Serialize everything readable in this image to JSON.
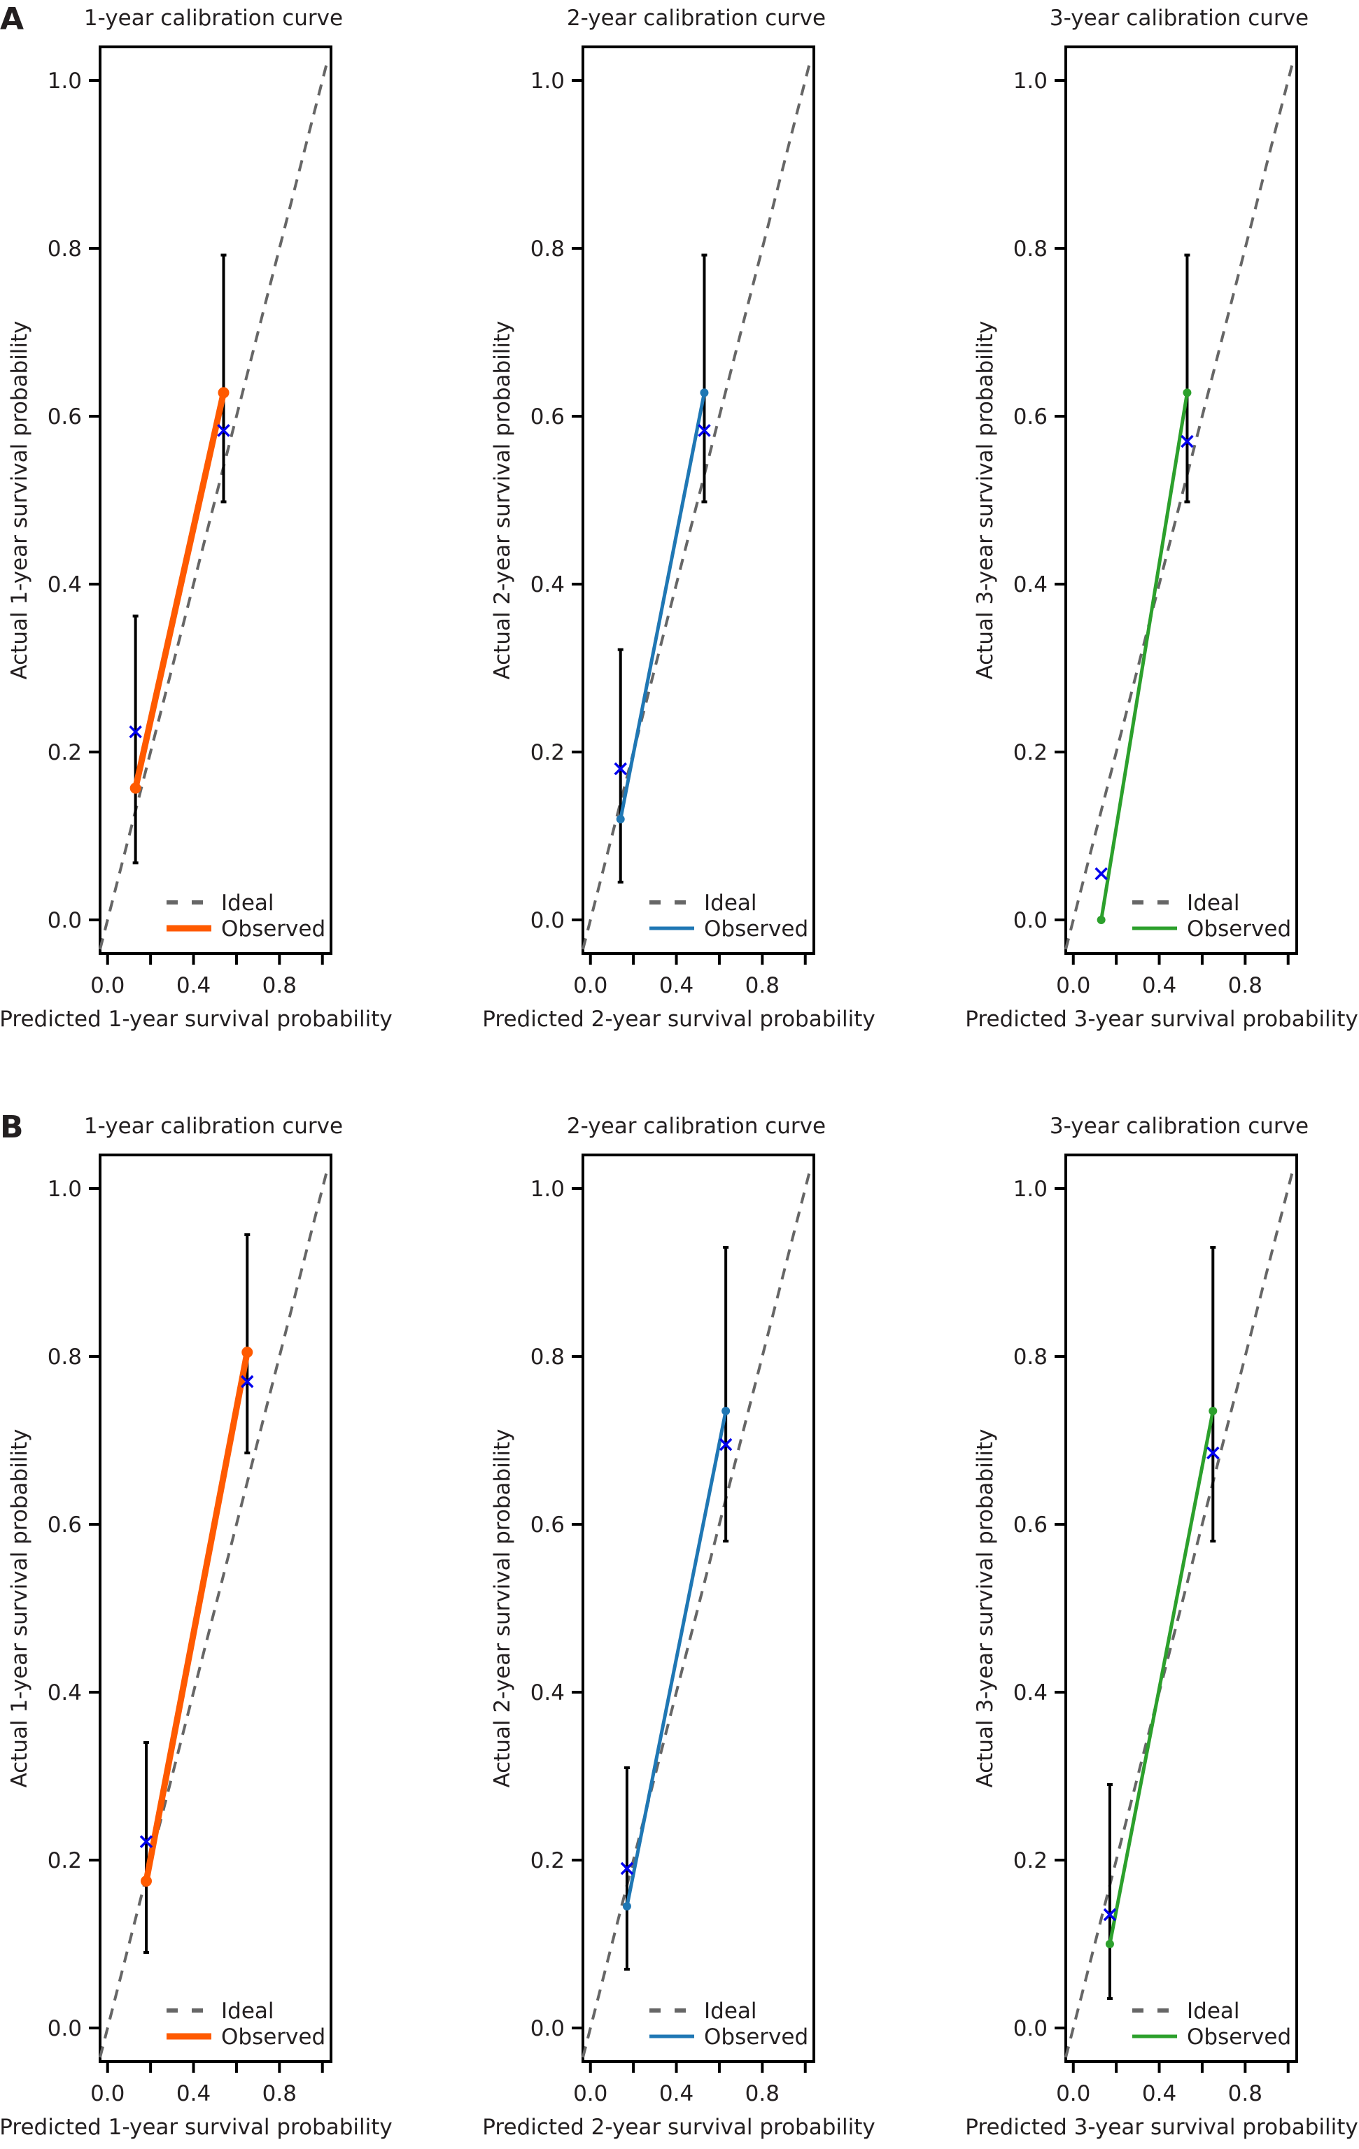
{
  "panel_labels": [
    "A",
    "B"
  ],
  "colors": {
    "ideal": "#666666",
    "observed": [
      "#ff5a00",
      "#1f77b4",
      "#2ca02c"
    ],
    "marker_x": "#0000ee",
    "errorbar": "#000000"
  },
  "chart_data": [
    {
      "panel": "A",
      "type": "line",
      "title": "1-year calibration curve",
      "xlabel": "Predicted 1-year survival probability",
      "ylabel": "Actual 1-year survival probability",
      "xlim": [
        -0.035,
        1.04
      ],
      "ylim": [
        -0.04,
        1.04
      ],
      "xticks": [
        0.0,
        0.2,
        0.4,
        0.6,
        0.8,
        1.0
      ],
      "xtick_labels": [
        "0.0",
        "",
        "0.4",
        "",
        "0.8",
        ""
      ],
      "yticks": [
        0.0,
        0.2,
        0.4,
        0.6,
        0.8,
        1.0
      ],
      "ytick_labels": [
        "0.0",
        "0.2",
        "0.4",
        "0.6",
        "0.8",
        "1.0"
      ],
      "legend": [
        "Ideal",
        "Observed"
      ],
      "legend_position": "bottom-right",
      "color_index": 0,
      "observed": {
        "x": [
          0.13,
          0.54
        ],
        "y": [
          0.157,
          0.628
        ]
      },
      "bias_corrected_x_marks": {
        "x": [
          0.13,
          0.54
        ],
        "y": [
          0.224,
          0.583
        ]
      },
      "error_bars": [
        {
          "x": 0.13,
          "low": 0.068,
          "high": 0.362
        },
        {
          "x": 0.54,
          "low": 0.498,
          "high": 0.792
        }
      ]
    },
    {
      "panel": "A",
      "type": "line",
      "title": "2-year calibration curve",
      "xlabel": "Predicted 2-year survival probability",
      "ylabel": "Actual 2-year survival probability",
      "xlim": [
        -0.035,
        1.04
      ],
      "ylim": [
        -0.04,
        1.04
      ],
      "xticks": [
        0.0,
        0.2,
        0.4,
        0.6,
        0.8,
        1.0
      ],
      "xtick_labels": [
        "0.0",
        "",
        "0.4",
        "",
        "0.8",
        ""
      ],
      "yticks": [
        0.0,
        0.2,
        0.4,
        0.6,
        0.8,
        1.0
      ],
      "ytick_labels": [
        "0.0",
        "0.2",
        "0.4",
        "0.6",
        "0.8",
        "1.0"
      ],
      "legend": [
        "Ideal",
        "Observed"
      ],
      "legend_position": "bottom-right",
      "color_index": 1,
      "observed": {
        "x": [
          0.14,
          0.53
        ],
        "y": [
          0.12,
          0.628
        ]
      },
      "bias_corrected_x_marks": {
        "x": [
          0.14,
          0.53
        ],
        "y": [
          0.18,
          0.583
        ]
      },
      "error_bars": [
        {
          "x": 0.14,
          "low": 0.045,
          "high": 0.322
        },
        {
          "x": 0.53,
          "low": 0.498,
          "high": 0.792
        }
      ]
    },
    {
      "panel": "A",
      "type": "line",
      "title": "3-year calibration curve",
      "xlabel": "Predicted 3-year survival probability",
      "ylabel": "Actual 3-year survival probability",
      "xlim": [
        -0.035,
        1.04
      ],
      "ylim": [
        -0.04,
        1.04
      ],
      "xticks": [
        0.0,
        0.2,
        0.4,
        0.6,
        0.8,
        1.0
      ],
      "xtick_labels": [
        "0.0",
        "",
        "0.4",
        "",
        "0.8",
        ""
      ],
      "yticks": [
        0.0,
        0.2,
        0.4,
        0.6,
        0.8,
        1.0
      ],
      "ytick_labels": [
        "0.0",
        "0.2",
        "0.4",
        "0.6",
        "0.8",
        "1.0"
      ],
      "legend": [
        "Ideal",
        "Observed"
      ],
      "legend_position": "bottom-right",
      "color_index": 2,
      "observed": {
        "x": [
          0.13,
          0.53
        ],
        "y": [
          0.0,
          0.628
        ]
      },
      "bias_corrected_x_marks": {
        "x": [
          0.13,
          0.53
        ],
        "y": [
          0.055,
          0.57
        ]
      },
      "error_bars": [
        {
          "x": 0.13,
          "low": 0.0,
          "high": 0.0
        },
        {
          "x": 0.53,
          "low": 0.498,
          "high": 0.792
        }
      ]
    },
    {
      "panel": "B",
      "type": "line",
      "title": "1-year calibration curve",
      "xlabel": "Predicted 1-year survival probability",
      "ylabel": "Actual 1-year survival probability",
      "xlim": [
        -0.035,
        1.04
      ],
      "ylim": [
        -0.04,
        1.04
      ],
      "xticks": [
        0.0,
        0.2,
        0.4,
        0.6,
        0.8,
        1.0
      ],
      "xtick_labels": [
        "0.0",
        "",
        "0.4",
        "",
        "0.8",
        ""
      ],
      "yticks": [
        0.0,
        0.2,
        0.4,
        0.6,
        0.8,
        1.0
      ],
      "ytick_labels": [
        "0.0",
        "0.2",
        "0.4",
        "0.6",
        "0.8",
        "1.0"
      ],
      "legend": [
        "Ideal",
        "Observed"
      ],
      "legend_position": "bottom-right",
      "color_index": 0,
      "observed": {
        "x": [
          0.18,
          0.65
        ],
        "y": [
          0.175,
          0.805
        ]
      },
      "bias_corrected_x_marks": {
        "x": [
          0.18,
          0.65
        ],
        "y": [
          0.222,
          0.77
        ]
      },
      "error_bars": [
        {
          "x": 0.18,
          "low": 0.09,
          "high": 0.34
        },
        {
          "x": 0.65,
          "low": 0.685,
          "high": 0.945
        }
      ]
    },
    {
      "panel": "B",
      "type": "line",
      "title": "2-year calibration curve",
      "xlabel": "Predicted 2-year survival probability",
      "ylabel": "Actual 2-year survival probability",
      "xlim": [
        -0.035,
        1.04
      ],
      "ylim": [
        -0.04,
        1.04
      ],
      "xticks": [
        0.0,
        0.2,
        0.4,
        0.6,
        0.8,
        1.0
      ],
      "xtick_labels": [
        "0.0",
        "",
        "0.4",
        "",
        "0.8",
        ""
      ],
      "yticks": [
        0.0,
        0.2,
        0.4,
        0.6,
        0.8,
        1.0
      ],
      "ytick_labels": [
        "0.0",
        "0.2",
        "0.4",
        "0.6",
        "0.8",
        "1.0"
      ],
      "legend": [
        "Ideal",
        "Observed"
      ],
      "legend_position": "bottom-right",
      "color_index": 1,
      "observed": {
        "x": [
          0.17,
          0.63
        ],
        "y": [
          0.145,
          0.735
        ]
      },
      "bias_corrected_x_marks": {
        "x": [
          0.17,
          0.63
        ],
        "y": [
          0.19,
          0.695
        ]
      },
      "error_bars": [
        {
          "x": 0.17,
          "low": 0.07,
          "high": 0.31
        },
        {
          "x": 0.63,
          "low": 0.58,
          "high": 0.93
        }
      ]
    },
    {
      "panel": "B",
      "type": "line",
      "title": "3-year calibration curve",
      "xlabel": "Predicted 3-year survival probability",
      "ylabel": "Actual 3-year survival probability",
      "xlim": [
        -0.035,
        1.04
      ],
      "ylim": [
        -0.04,
        1.04
      ],
      "xticks": [
        0.0,
        0.2,
        0.4,
        0.6,
        0.8,
        1.0
      ],
      "xtick_labels": [
        "0.0",
        "",
        "0.4",
        "",
        "0.8",
        ""
      ],
      "yticks": [
        0.0,
        0.2,
        0.4,
        0.6,
        0.8,
        1.0
      ],
      "ytick_labels": [
        "0.0",
        "0.2",
        "0.4",
        "0.6",
        "0.8",
        "1.0"
      ],
      "legend": [
        "Ideal",
        "Observed"
      ],
      "legend_position": "bottom-right",
      "color_index": 2,
      "observed": {
        "x": [
          0.17,
          0.65
        ],
        "y": [
          0.1,
          0.735
        ]
      },
      "bias_corrected_x_marks": {
        "x": [
          0.17,
          0.65
        ],
        "y": [
          0.135,
          0.685
        ]
      },
      "error_bars": [
        {
          "x": 0.17,
          "low": 0.035,
          "high": 0.29
        },
        {
          "x": 0.65,
          "low": 0.58,
          "high": 0.93
        }
      ]
    }
  ]
}
